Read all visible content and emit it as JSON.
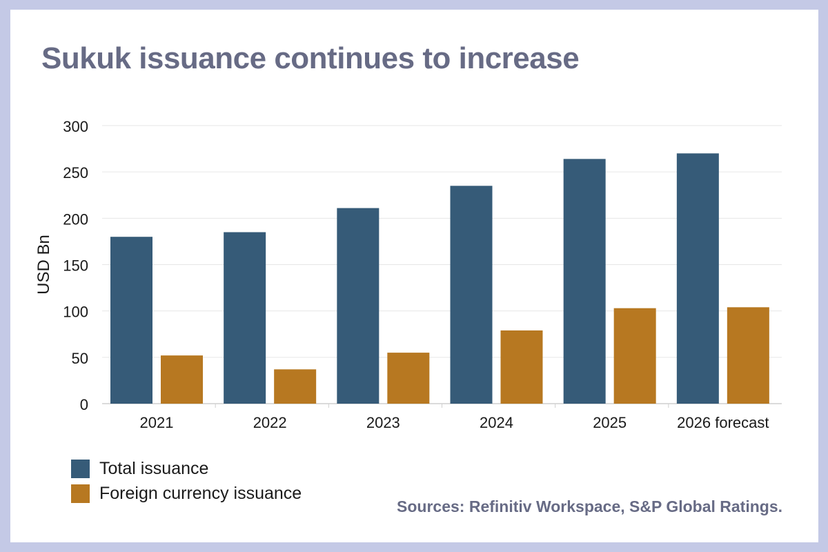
{
  "title": "Sukuk issuance continues to increase",
  "source": "Sources: Refinitiv Workspace, S&P Global Ratings.",
  "colors": {
    "total": "#365b78",
    "foreign": "#b77821",
    "title": "#676b85",
    "frame": "#c4c9e6"
  },
  "chart_data": {
    "type": "bar",
    "title": "Sukuk issuance continues to increase",
    "xlabel": "",
    "ylabel": "USD Bn",
    "ylim": [
      0,
      300
    ],
    "yticks": [
      0,
      50,
      100,
      150,
      200,
      250,
      300
    ],
    "grid": true,
    "legend": "bottom-left",
    "categories": [
      "2021",
      "2022",
      "2023",
      "2024",
      "2025",
      "2026 forecast"
    ],
    "series": [
      {
        "name": "Total issuance",
        "values": [
          180,
          185,
          211,
          235,
          264,
          270
        ]
      },
      {
        "name": "Foreign currency issuance",
        "values": [
          52,
          37,
          55,
          79,
          103,
          104
        ]
      }
    ]
  }
}
